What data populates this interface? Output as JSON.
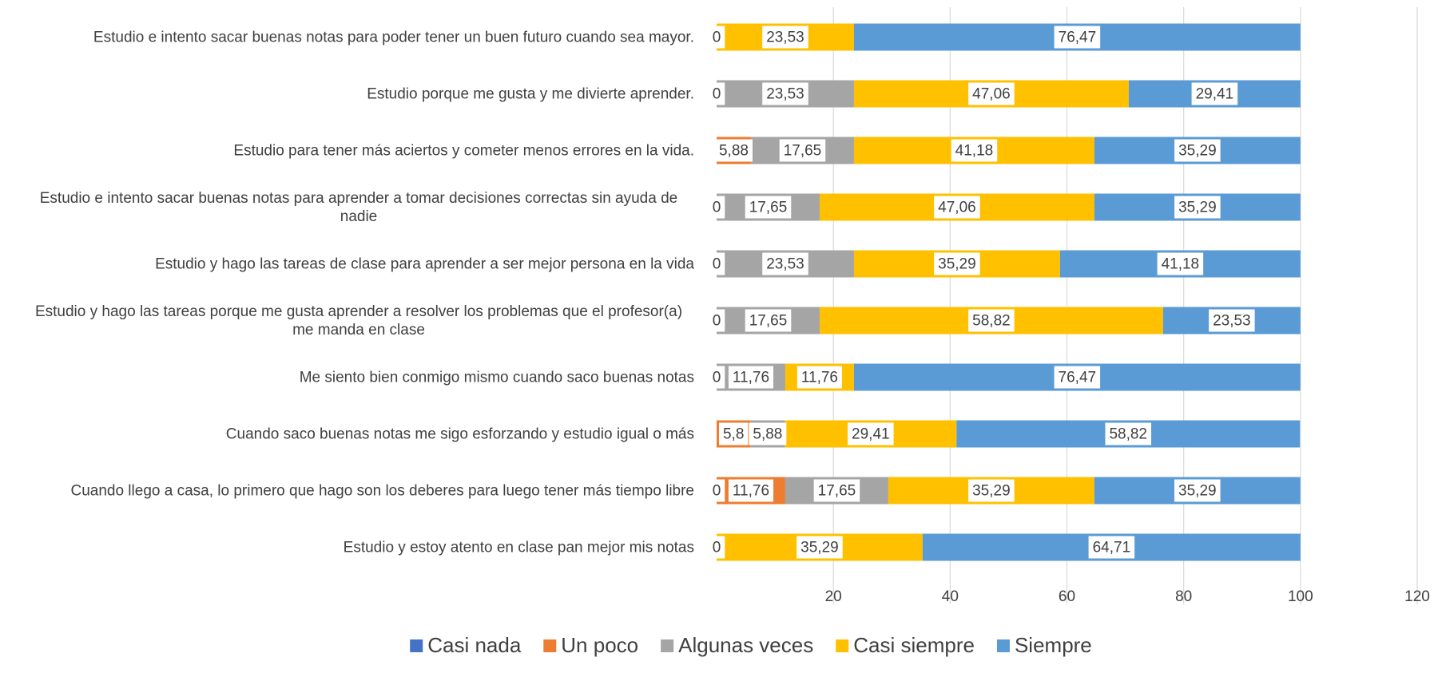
{
  "chart_data": {
    "type": "stacked-bar-horizontal",
    "categories": [
      "Estudio e intento sacar buenas notas para poder tener un buen futuro cuando sea mayor.",
      "Estudio porque me gusta y me divierte aprender.",
      "Estudio para tener más aciertos y cometer menos errores en la vida.",
      "Estudio e intento sacar buenas notas para aprender a tomar decisiones correctas sin ayuda de nadie",
      "Estudio y hago las tareas de clase para aprender a ser mejor persona en la vida",
      "Estudio y hago las tareas porque me gusta aprender a resolver los problemas que el profesor(a) me manda en clase",
      "Me siento bien conmigo mismo cuando saco buenas notas",
      "Cuando saco buenas notas me sigo esforzando y estudio igual o más",
      "Cuando llego a casa, lo primero que hago son los deberes para luego tener más tiempo libre",
      "Estudio y estoy atento en clase pan mejor mis notas"
    ],
    "series": [
      {
        "name": "Casi nada",
        "color": "#4472c4",
        "values": [
          null,
          null,
          null,
          null,
          null,
          null,
          null,
          null,
          0,
          null
        ],
        "value_labels": [
          null,
          null,
          null,
          null,
          null,
          null,
          null,
          null,
          "0",
          null
        ]
      },
      {
        "name": "Un poco",
        "color": "#ed7d31",
        "values": [
          0,
          0,
          5.88,
          0,
          0,
          0,
          0,
          5.8,
          11.76,
          0
        ],
        "value_labels": [
          "0",
          "0",
          "5,88",
          "0",
          "0",
          "0",
          "0",
          "5,8",
          "11,76",
          "0"
        ]
      },
      {
        "name": "Algunas veces",
        "color": "#a5a5a5",
        "values": [
          null,
          23.53,
          17.65,
          17.65,
          23.53,
          17.65,
          11.76,
          5.88,
          17.65,
          null
        ],
        "value_labels": [
          null,
          "23,53",
          "17,65",
          "17,65",
          "23,53",
          "17,65",
          "11,76",
          "5,88",
          "17,65",
          null
        ]
      },
      {
        "name": "Casi siempre",
        "color": "#ffc000",
        "values": [
          23.53,
          47.06,
          41.18,
          47.06,
          35.29,
          58.82,
          11.76,
          29.41,
          35.29,
          35.29
        ],
        "value_labels": [
          "23,53",
          "47,06",
          "41,18",
          "47,06",
          "35,29",
          "58,82",
          "11,76",
          "29,41",
          "35,29",
          "35,29"
        ]
      },
      {
        "name": "Siempre",
        "color": "#5b9bd5",
        "values": [
          76.47,
          29.41,
          35.29,
          35.29,
          41.18,
          23.53,
          76.47,
          58.82,
          35.29,
          64.71
        ],
        "value_labels": [
          "76,47",
          "29,41",
          "35,29",
          "35,29",
          "41,18",
          "23,53",
          "76,47",
          "58,82",
          "35,29",
          "64,71"
        ]
      }
    ],
    "xlim": [
      0,
      120
    ],
    "xticks": [
      20,
      40,
      60,
      80,
      100,
      120
    ],
    "grid": true,
    "legend": "bottom"
  }
}
